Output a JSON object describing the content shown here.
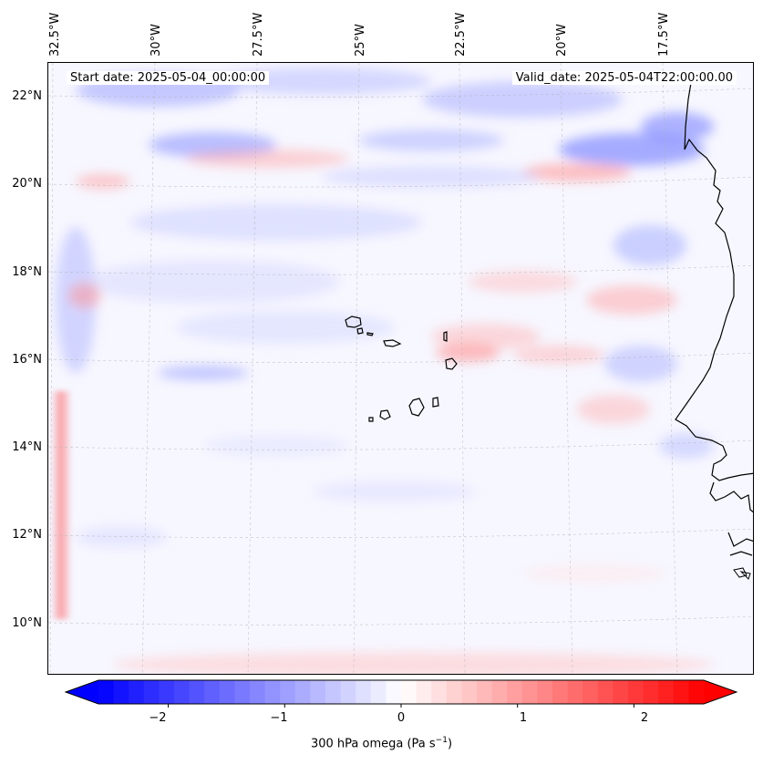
{
  "header": {
    "start_date": "Start date: 2025-05-04_00:00:00",
    "valid_date": "Valid_date: 2025-05-04T22:00:00.00"
  },
  "map": {
    "longitude_labels": [
      "32.5°W",
      "30°W",
      "27.5°W",
      "25°W",
      "22.5°W",
      "20°W",
      "17.5°W"
    ],
    "latitude_labels": [
      "22°N",
      "20°N",
      "18°N",
      "16°N",
      "14°N",
      "12°N",
      "10°N"
    ],
    "field_colors": {
      "negative": "#0000ff",
      "neutral": "#ffffff",
      "positive": "#ff0000"
    },
    "coastline_color": "#000000",
    "gridline_color": "#b0b0b0"
  },
  "colorbar": {
    "ticks": [
      "−2",
      "−1",
      "0",
      "1",
      "2"
    ],
    "tick_values": [
      -2,
      -1,
      0,
      1,
      2
    ],
    "range": [
      -2.6,
      2.6
    ],
    "label_text": "300 hPa omega (Pa s",
    "label_sup": "−1",
    "label_close": ")"
  }
}
